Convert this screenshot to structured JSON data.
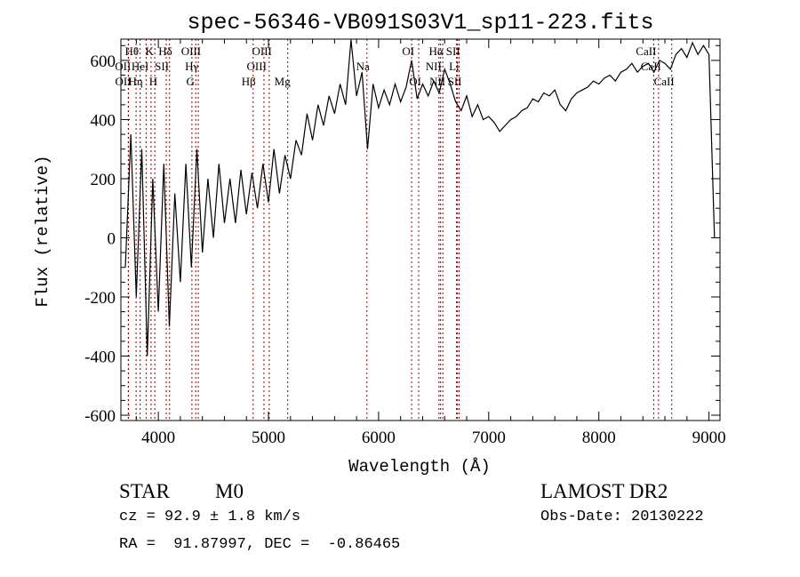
{
  "chart_data": {
    "type": "line",
    "title": "spec-56346-VB091S03V1_sp11-223.fits",
    "xlabel": "Wavelength (Å)",
    "ylabel": "Flux (relative)",
    "xlim": [
      3660,
      9100
    ],
    "ylim": [
      -618,
      672
    ],
    "xticks": [
      4000,
      5000,
      6000,
      7000,
      8000,
      9000
    ],
    "yticks": [
      -600,
      -400,
      -200,
      0,
      200,
      400,
      600
    ],
    "grid": false,
    "line_color": "#000000",
    "marker_color": "#8b0000",
    "x_start": 3700,
    "x_step": 50,
    "values": [
      -100,
      350,
      -200,
      300,
      -400,
      200,
      -250,
      250,
      -300,
      150,
      -150,
      250,
      -100,
      300,
      -50,
      200,
      0,
      250,
      50,
      200,
      50,
      230,
      80,
      220,
      100,
      250,
      120,
      300,
      150,
      280,
      200,
      330,
      280,
      420,
      330,
      450,
      380,
      480,
      420,
      520,
      450,
      670,
      480,
      560,
      300,
      520,
      440,
      500,
      450,
      520,
      460,
      510,
      600,
      470,
      520,
      480,
      530,
      490,
      570,
      520,
      460,
      430,
      480,
      410,
      450,
      400,
      410,
      390,
      360,
      380,
      400,
      410,
      430,
      440,
      470,
      460,
      490,
      480,
      500,
      450,
      430,
      470,
      490,
      500,
      510,
      530,
      520,
      540,
      550,
      530,
      560,
      570,
      590,
      560,
      580,
      590,
      560,
      600,
      590,
      570,
      620,
      640,
      610,
      660,
      620,
      650,
      620,
      0
    ],
    "lines": [
      {
        "label": "OII",
        "wl": 3727,
        "row": 2
      },
      {
        "label": "Hθ",
        "wl": 3798,
        "row": 1
      },
      {
        "label": "OII",
        "wl": 3729,
        "row": 3
      },
      {
        "label": "Hη",
        "wl": 3835,
        "row": 3
      },
      {
        "label": "HeI",
        "wl": 3889,
        "row": 2
      },
      {
        "label": "K",
        "wl": 3934,
        "row": 1
      },
      {
        "label": "H",
        "wl": 3968,
        "row": 3
      },
      {
        "label": "SII",
        "wl": 4072,
        "row": 2
      },
      {
        "label": "Hδ",
        "wl": 4102,
        "row": 1
      },
      {
        "label": "G",
        "wl": 4305,
        "row": 3
      },
      {
        "label": "Hγ",
        "wl": 4340,
        "row": 2
      },
      {
        "label": "OIII",
        "wl": 4363,
        "row": 1
      },
      {
        "label": "Hβ",
        "wl": 4861,
        "row": 3
      },
      {
        "label": "OIII",
        "wl": 4959,
        "row": 2
      },
      {
        "label": "OIII",
        "wl": 5007,
        "row": 1
      },
      {
        "label": "Mg",
        "wl": 5175,
        "row": 3
      },
      {
        "label": "Na",
        "wl": 5894,
        "row": 2
      },
      {
        "label": "OI",
        "wl": 6300,
        "row": 1
      },
      {
        "label": "OI",
        "wl": 6364,
        "row": 3
      },
      {
        "label": "NII",
        "wl": 6548,
        "row": 2
      },
      {
        "label": "Hα",
        "wl": 6563,
        "row": 1
      },
      {
        "label": "NII",
        "wl": 6583,
        "row": 3
      },
      {
        "label": "Li",
        "wl": 6708,
        "row": 2
      },
      {
        "label": "SII",
        "wl": 6716,
        "row": 1
      },
      {
        "label": "SII",
        "wl": 6731,
        "row": 3
      },
      {
        "label": "CaII",
        "wl": 8498,
        "row": 1
      },
      {
        "label": "CaII",
        "wl": 8542,
        "row": 2
      },
      {
        "label": "CaII",
        "wl": 8662,
        "row": 3
      }
    ]
  },
  "info": {
    "object_type": "STAR",
    "subclass": "M0",
    "survey": "LAMOST DR2",
    "cz": "cz = 92.9 ± 1.8 km/s",
    "obs_date": "Obs-Date: 20130222",
    "coords": "RA =  91.87997, DEC =  -0.86465"
  }
}
